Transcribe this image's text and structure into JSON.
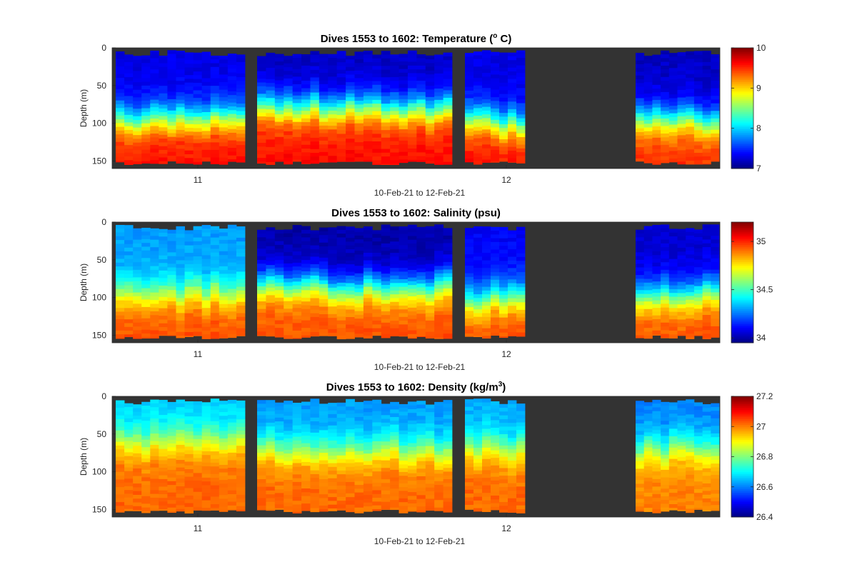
{
  "chart_data": [
    {
      "type": "heatmap",
      "title": "Dives 1553 to 1602: Temperature (",
      "title_sup": "o",
      "title_tail": " C)",
      "xlabel": "10-Feb-21 to 12-Feb-21",
      "ylabel": "Depth (m)",
      "ylim": [
        0,
        160
      ],
      "y_reversed": true,
      "yticks": [
        "0",
        "50",
        "100",
        "150"
      ],
      "xticks": [
        "11",
        "12"
      ],
      "color_limits": [
        7,
        10
      ],
      "colorbar_ticks": [
        "7",
        "8",
        "9",
        "10"
      ],
      "colormap": "jet",
      "no_data_color": "#333333",
      "profile_groups": [
        {
          "casts": 15,
          "surface_value": 7.3,
          "deep_value": 9.6,
          "thermocline_depth_m": 95
        },
        {
          "casts": 22,
          "surface_value": 7.2,
          "deep_value": 9.6,
          "thermocline_depth_m": 80
        },
        {
          "casts": 7,
          "surface_value": 7.3,
          "deep_value": 9.6,
          "thermocline_depth_m": 100
        },
        {
          "casts": 0
        },
        {
          "casts": 10,
          "surface_value": 7.2,
          "deep_value": 9.5,
          "thermocline_depth_m": 95
        }
      ]
    },
    {
      "type": "heatmap",
      "title": "Dives 1553 to 1602: Salinity (psu)",
      "xlabel": "10-Feb-21 to 12-Feb-21",
      "ylabel": "Depth (m)",
      "ylim": [
        0,
        160
      ],
      "y_reversed": true,
      "yticks": [
        "0",
        "50",
        "100",
        "150"
      ],
      "xticks": [
        "11",
        "12"
      ],
      "color_limits": [
        33.95,
        35.2
      ],
      "colorbar_ticks": [
        "34",
        "34.5",
        "35"
      ],
      "colormap": "jet",
      "no_data_color": "#333333",
      "profile_groups": [
        {
          "casts": 15,
          "surface_value": 34.3,
          "deep_value": 34.95,
          "thermocline_depth_m": 95
        },
        {
          "casts": 22,
          "surface_value": 34.0,
          "deep_value": 34.95,
          "thermocline_depth_m": 85
        },
        {
          "casts": 7,
          "surface_value": 34.1,
          "deep_value": 34.95,
          "thermocline_depth_m": 100
        },
        {
          "casts": 0
        },
        {
          "casts": 10,
          "surface_value": 34.05,
          "deep_value": 34.95,
          "thermocline_depth_m": 95
        }
      ]
    },
    {
      "type": "heatmap",
      "title": "Dives 1553 to 1602: Density (kg/m",
      "title_sup": "3",
      "title_tail": ")",
      "xlabel": "10-Feb-21 to 12-Feb-21",
      "ylabel": "Depth (m)",
      "ylim": [
        0,
        160
      ],
      "y_reversed": true,
      "yticks": [
        "0",
        "50",
        "100",
        "150"
      ],
      "xticks": [
        "11",
        "12"
      ],
      "color_limits": [
        26.4,
        27.2
      ],
      "colorbar_ticks": [
        "26.4",
        "26.6",
        "26.8",
        "27",
        "27.2"
      ],
      "colormap": "jet",
      "no_data_color": "#333333",
      "profile_groups": [
        {
          "casts": 15,
          "surface_value": 26.66,
          "deep_value": 27.02,
          "thermocline_depth_m": 60
        },
        {
          "casts": 22,
          "surface_value": 26.62,
          "deep_value": 27.02,
          "thermocline_depth_m": 70
        },
        {
          "casts": 7,
          "surface_value": 26.63,
          "deep_value": 27.02,
          "thermocline_depth_m": 70
        },
        {
          "casts": 0
        },
        {
          "casts": 10,
          "surface_value": 26.6,
          "deep_value": 27.0,
          "thermocline_depth_m": 70
        }
      ]
    }
  ]
}
